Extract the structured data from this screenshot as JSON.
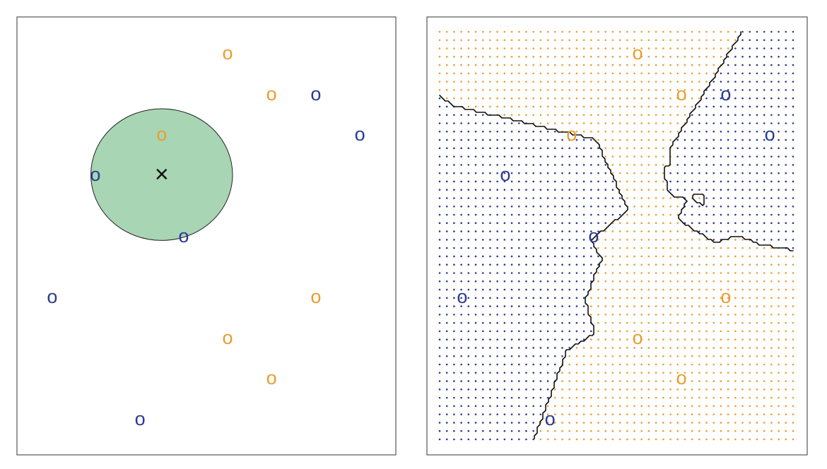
{
  "chart_data": [
    {
      "type": "scatter",
      "marker": "o",
      "xlim": [
        0,
        10
      ],
      "ylim": [
        0,
        10
      ],
      "series": [
        {
          "color": "#eb9d2f",
          "x": [
            5.56,
            6.72,
            3.82,
            7.89,
            5.56,
            6.72
          ],
          "y": [
            9.18,
            8.24,
            7.32,
            3.61,
            2.68,
            1.76
          ]
        },
        {
          "color": "#2b3a91",
          "x": [
            7.89,
            9.05,
            2.07,
            4.4,
            0.93,
            3.25
          ],
          "y": [
            8.24,
            7.32,
            6.4,
            5.0,
            3.61,
            0.82
          ]
        }
      ],
      "test_point": {
        "x": 3.82,
        "y": 6.4,
        "marker": "×"
      },
      "neighborhood_radius": 1.87,
      "neighborhood_color": "#a8d5b3"
    },
    {
      "type": "knn",
      "k": 3,
      "marker": "o",
      "xlim": [
        0,
        10
      ],
      "ylim": [
        0,
        10
      ],
      "series": [
        {
          "color": "#eb9d2f",
          "x": [
            5.56,
            6.72,
            3.82,
            7.89,
            5.56,
            6.72
          ],
          "y": [
            9.18,
            8.24,
            7.32,
            3.61,
            2.68,
            1.76
          ]
        },
        {
          "color": "#2b3a91",
          "x": [
            7.89,
            9.05,
            2.07,
            4.4,
            0.93,
            3.25
          ],
          "y": [
            8.24,
            7.32,
            6.4,
            5.0,
            3.61,
            0.82
          ]
        }
      ]
    }
  ]
}
